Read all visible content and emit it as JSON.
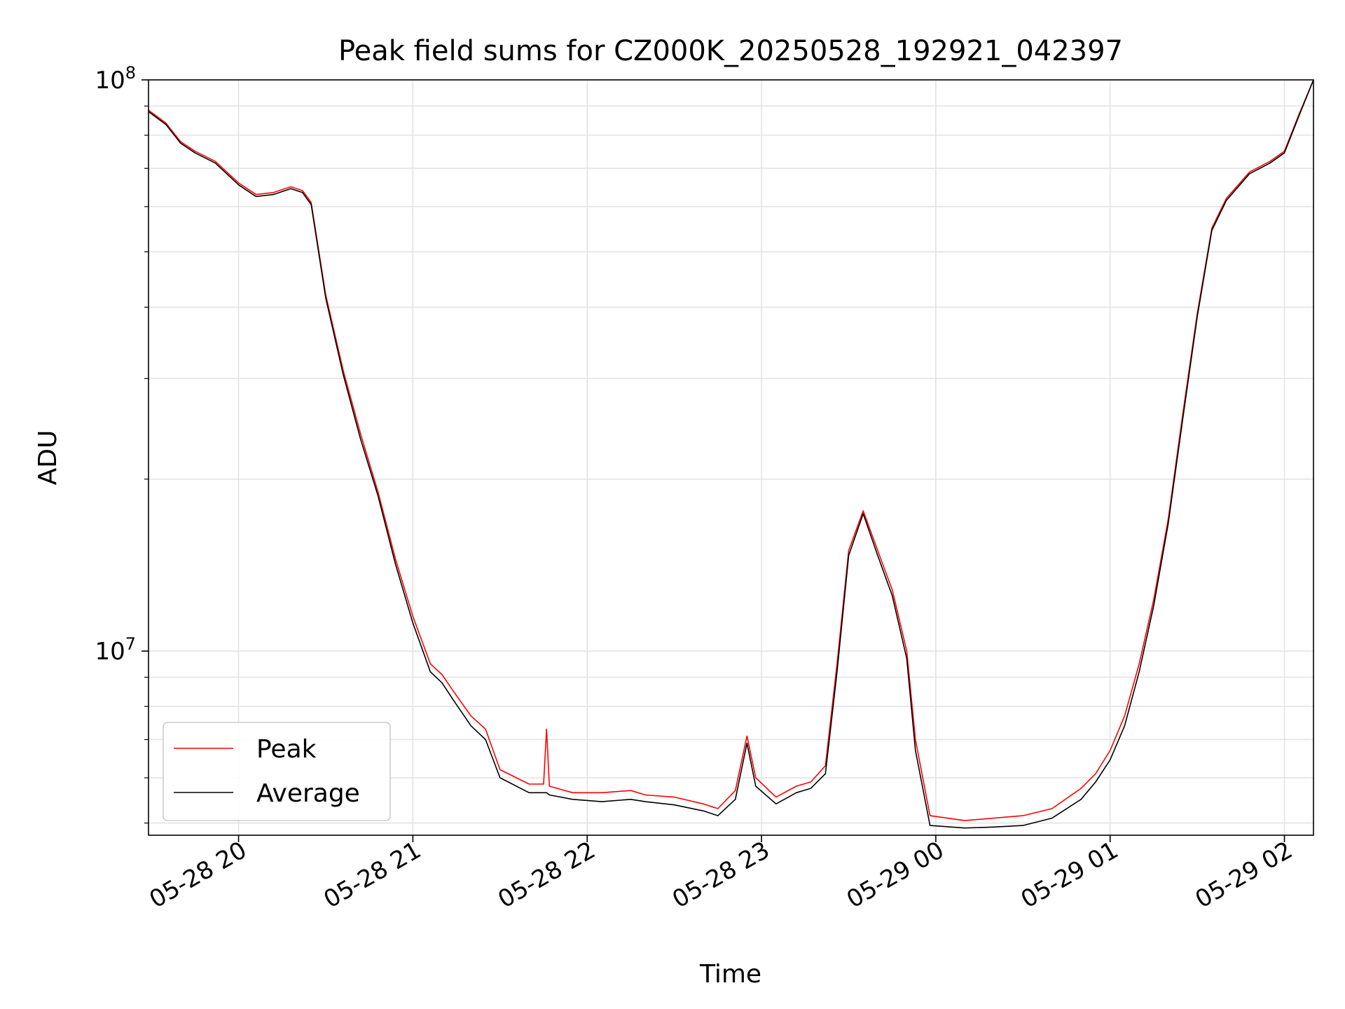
{
  "chart_data": {
    "type": "line",
    "title": "Peak field sums for CZ000K_20250528_192921_042397",
    "xlabel": "Time",
    "ylabel": "ADU",
    "yscale": "log",
    "grid": true,
    "legend_position": "lower-left",
    "xlim": [
      "2025-05-28 19:29",
      "2025-05-29 02:10"
    ],
    "ylim": [
      4760000,
      100000000
    ],
    "x_ticks": [
      "2025-05-28 20:00",
      "2025-05-28 21:00",
      "2025-05-28 22:00",
      "2025-05-28 23:00",
      "2025-05-29 00:00",
      "2025-05-29 01:00",
      "2025-05-29 02:00"
    ],
    "x_tick_labels": [
      "05-28 20",
      "05-28 21",
      "05-28 22",
      "05-28 23",
      "05-29 00",
      "05-29 01",
      "05-29 02"
    ],
    "y_ticks": [
      10000000,
      100000000
    ],
    "y_tick_labels": [
      {
        "base": "10",
        "exp": "7"
      },
      {
        "base": "10",
        "exp": "8"
      }
    ],
    "series": [
      {
        "name": "Peak",
        "color": "#ff0000",
        "x": [
          "2025-05-28 19:29",
          "2025-05-28 19:35",
          "2025-05-28 19:40",
          "2025-05-28 19:45",
          "2025-05-28 19:52",
          "2025-05-28 20:00",
          "2025-05-28 20:06",
          "2025-05-28 20:12",
          "2025-05-28 20:18",
          "2025-05-28 20:22",
          "2025-05-28 20:25",
          "2025-05-28 20:30",
          "2025-05-28 20:36",
          "2025-05-28 20:42",
          "2025-05-28 20:48",
          "2025-05-28 20:54",
          "2025-05-28 21:00",
          "2025-05-28 21:06",
          "2025-05-28 21:10",
          "2025-05-28 21:14",
          "2025-05-28 21:20",
          "2025-05-28 21:25",
          "2025-05-28 21:30",
          "2025-05-28 21:40",
          "2025-05-28 21:45",
          "2025-05-28 21:46",
          "2025-05-28 21:47",
          "2025-05-28 21:55",
          "2025-05-28 22:05",
          "2025-05-28 22:15",
          "2025-05-28 22:20",
          "2025-05-28 22:30",
          "2025-05-28 22:40",
          "2025-05-28 22:45",
          "2025-05-28 22:51",
          "2025-05-28 22:55",
          "2025-05-28 22:58",
          "2025-05-28 23:05",
          "2025-05-28 23:12",
          "2025-05-28 23:17",
          "2025-05-28 23:22",
          "2025-05-28 23:26",
          "2025-05-28 23:30",
          "2025-05-28 23:35",
          "2025-05-28 23:40",
          "2025-05-28 23:45",
          "2025-05-28 23:50",
          "2025-05-28 23:53",
          "2025-05-28 23:58",
          "2025-05-29 00:10",
          "2025-05-29 00:20",
          "2025-05-29 00:30",
          "2025-05-29 00:40",
          "2025-05-29 00:50",
          "2025-05-29 00:55",
          "2025-05-29 01:00",
          "2025-05-29 01:05",
          "2025-05-29 01:10",
          "2025-05-29 01:15",
          "2025-05-29 01:20",
          "2025-05-29 01:25",
          "2025-05-29 01:30",
          "2025-05-29 01:35",
          "2025-05-29 01:40",
          "2025-05-29 01:48",
          "2025-05-29 01:55",
          "2025-05-29 02:00",
          "2025-05-29 02:05",
          "2025-05-29 02:10"
        ],
        "y": [
          88500000,
          84000000,
          78000000,
          75000000,
          72000000,
          66000000,
          63000000,
          63500000,
          65000000,
          64000000,
          61000000,
          42000000,
          31000000,
          24000000,
          19000000,
          14500000,
          11500000,
          9500000,
          9100000,
          8500000,
          7700000,
          7300000,
          6200000,
          5850000,
          5850000,
          7300000,
          5800000,
          5650000,
          5650000,
          5700000,
          5600000,
          5550000,
          5400000,
          5300000,
          5700000,
          7100000,
          6000000,
          5550000,
          5800000,
          5900000,
          6300000,
          9500000,
          15000000,
          17600000,
          15000000,
          12800000,
          10000000,
          7000000,
          5150000,
          5050000,
          5100000,
          5150000,
          5300000,
          5750000,
          6100000,
          6700000,
          7700000,
          9500000,
          12300000,
          17000000,
          26000000,
          39000000,
          55000000,
          62000000,
          69000000,
          72000000,
          75000000,
          87000000,
          100000000
        ]
      },
      {
        "name": "Average",
        "color": "#000000",
        "x": [
          "2025-05-28 19:29",
          "2025-05-28 19:35",
          "2025-05-28 19:40",
          "2025-05-28 19:45",
          "2025-05-28 19:52",
          "2025-05-28 20:00",
          "2025-05-28 20:06",
          "2025-05-28 20:12",
          "2025-05-28 20:18",
          "2025-05-28 20:22",
          "2025-05-28 20:25",
          "2025-05-28 20:30",
          "2025-05-28 20:36",
          "2025-05-28 20:42",
          "2025-05-28 20:48",
          "2025-05-28 20:54",
          "2025-05-28 21:00",
          "2025-05-28 21:06",
          "2025-05-28 21:10",
          "2025-05-28 21:14",
          "2025-05-28 21:20",
          "2025-05-28 21:25",
          "2025-05-28 21:30",
          "2025-05-28 21:40",
          "2025-05-28 21:45",
          "2025-05-28 21:46",
          "2025-05-28 21:47",
          "2025-05-28 21:55",
          "2025-05-28 22:05",
          "2025-05-28 22:15",
          "2025-05-28 22:20",
          "2025-05-28 22:30",
          "2025-05-28 22:40",
          "2025-05-28 22:45",
          "2025-05-28 22:51",
          "2025-05-28 22:55",
          "2025-05-28 22:58",
          "2025-05-28 23:05",
          "2025-05-28 23:12",
          "2025-05-28 23:17",
          "2025-05-28 23:22",
          "2025-05-28 23:26",
          "2025-05-28 23:30",
          "2025-05-28 23:35",
          "2025-05-28 23:40",
          "2025-05-28 23:45",
          "2025-05-28 23:50",
          "2025-05-28 23:53",
          "2025-05-28 23:58",
          "2025-05-29 00:10",
          "2025-05-29 00:20",
          "2025-05-29 00:30",
          "2025-05-29 00:40",
          "2025-05-29 00:50",
          "2025-05-29 00:55",
          "2025-05-29 01:00",
          "2025-05-29 01:05",
          "2025-05-29 01:10",
          "2025-05-29 01:15",
          "2025-05-29 01:20",
          "2025-05-29 01:25",
          "2025-05-29 01:30",
          "2025-05-29 01:35",
          "2025-05-29 01:40",
          "2025-05-29 01:48",
          "2025-05-29 01:55",
          "2025-05-29 02:00",
          "2025-05-29 02:05",
          "2025-05-29 02:10"
        ],
        "y": [
          88000000,
          83500000,
          77500000,
          74500000,
          71500000,
          65500000,
          62500000,
          63000000,
          64500000,
          63500000,
          60500000,
          41500000,
          30500000,
          23500000,
          18700000,
          14200000,
          11200000,
          9200000,
          8800000,
          8200000,
          7400000,
          7000000,
          6000000,
          5650000,
          5650000,
          5650000,
          5600000,
          5500000,
          5450000,
          5500000,
          5450000,
          5380000,
          5250000,
          5150000,
          5500000,
          6900000,
          5800000,
          5400000,
          5650000,
          5750000,
          6100000,
          9200000,
          14700000,
          17400000,
          14700000,
          12500000,
          9700000,
          6700000,
          4950000,
          4900000,
          4920000,
          4950000,
          5100000,
          5500000,
          5900000,
          6450000,
          7400000,
          9200000,
          12000000,
          16700000,
          25500000,
          38500000,
          54500000,
          61500000,
          68500000,
          71500000,
          74500000,
          86500000,
          100000000
        ]
      }
    ]
  }
}
